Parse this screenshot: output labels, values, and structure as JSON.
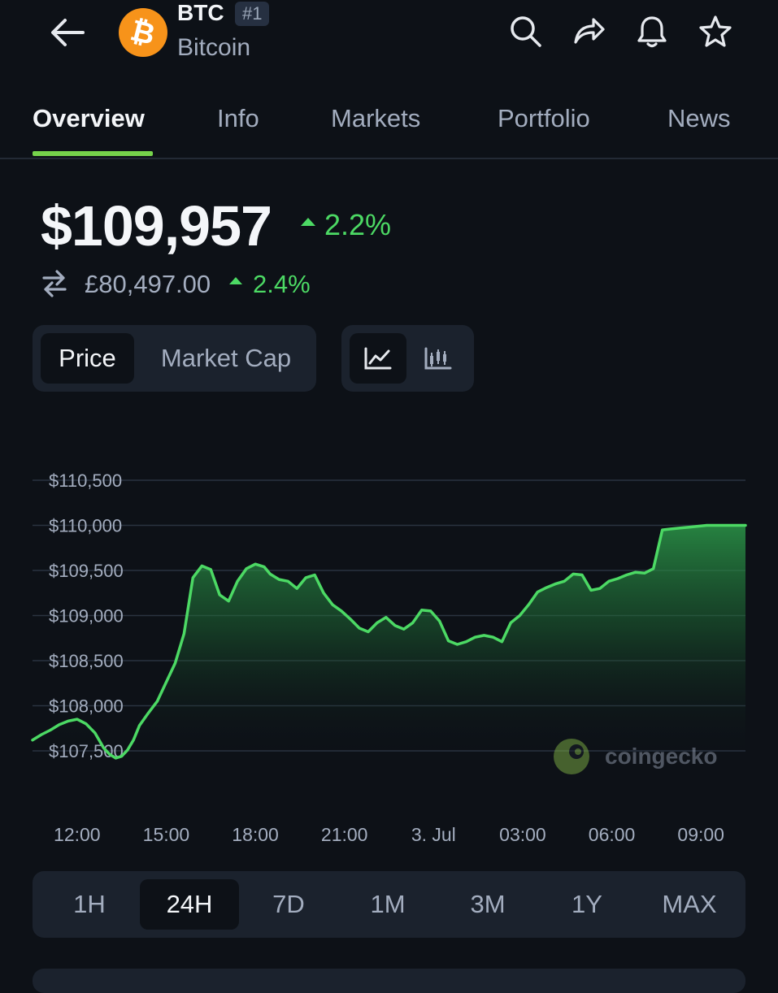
{
  "header": {
    "symbol": "BTC",
    "rank": "#1",
    "name": "Bitcoin",
    "coin_icon": "bitcoin-icon",
    "actions": [
      "search-icon",
      "share-icon",
      "bell-icon",
      "star-icon"
    ]
  },
  "tabs": [
    {
      "label": "Overview",
      "active": true
    },
    {
      "label": "Info"
    },
    {
      "label": "Markets"
    },
    {
      "label": "Portfolio"
    },
    {
      "label": "News"
    }
  ],
  "price": {
    "main": "$109,957",
    "main_change": "2.2%",
    "alt": "£80,497.00",
    "alt_change": "2.4%"
  },
  "chart_toggle": {
    "metric": [
      "Price",
      "Market Cap"
    ],
    "selected_metric": "Price",
    "style_icons": [
      "line-chart-icon",
      "candlestick-icon"
    ]
  },
  "chart_data": {
    "type": "area",
    "y_ticks": [
      "$110,500",
      "$110,000",
      "$109,500",
      "$109,000",
      "$108,500",
      "$108,000",
      "$107,500"
    ],
    "ylim": [
      107500,
      110500
    ],
    "x_ticks": [
      "12:00",
      "15:00",
      "18:00",
      "21:00",
      "3. Jul",
      "03:00",
      "06:00",
      "09:00"
    ],
    "x_tick_hours": [
      0,
      3,
      6,
      9,
      12,
      15,
      18,
      21
    ],
    "xlim": [
      -1.5,
      22.5
    ],
    "watermark": "coingecko",
    "line_color": "#4cd964",
    "x": [
      -1.5,
      -1.2,
      -0.9,
      -0.6,
      -0.3,
      0,
      0.3,
      0.6,
      0.9,
      1.1,
      1.3,
      1.5,
      1.7,
      1.9,
      2.1,
      2.4,
      2.7,
      3.0,
      3.3,
      3.6,
      3.9,
      4.2,
      4.5,
      4.8,
      5.1,
      5.4,
      5.7,
      6.0,
      6.3,
      6.5,
      6.8,
      7.1,
      7.4,
      7.7,
      8.0,
      8.3,
      8.6,
      8.9,
      9.2,
      9.5,
      9.8,
      10.1,
      10.4,
      10.7,
      11.0,
      11.3,
      11.6,
      11.9,
      12.2,
      12.5,
      12.8,
      13.1,
      13.4,
      13.7,
      14.0,
      14.3,
      14.6,
      14.9,
      15.2,
      15.5,
      15.8,
      16.1,
      16.4,
      16.7,
      17.0,
      17.3,
      17.6,
      17.9,
      18.2,
      18.5,
      18.8,
      19.1,
      19.4,
      19.7,
      20.0,
      20.3,
      20.6,
      20.9,
      21.2,
      21.5,
      21.8,
      22.1,
      22.5
    ],
    "values": [
      107620,
      107680,
      107730,
      107790,
      107830,
      107850,
      107800,
      107700,
      107530,
      107460,
      107420,
      107440,
      107510,
      107620,
      107780,
      107920,
      108050,
      108260,
      108470,
      108800,
      109420,
      109550,
      109510,
      109230,
      109160,
      109380,
      109520,
      109570,
      109540,
      109460,
      109400,
      109380,
      109300,
      109420,
      109450,
      109250,
      109120,
      109050,
      108960,
      108860,
      108820,
      108920,
      108980,
      108890,
      108850,
      108920,
      109060,
      109050,
      108940,
      108720,
      108680,
      108710,
      108760,
      108780,
      108760,
      108710,
      108920,
      109000,
      109120,
      109260,
      109310,
      109350,
      109380,
      109460,
      109450,
      109280,
      109300,
      109380,
      109410,
      109450,
      109480,
      109470,
      109520,
      109950,
      109960,
      109970,
      109980,
      109990,
      110000,
      110000,
      110000,
      110000,
      110000
    ],
    "values_note": "approximate"
  },
  "ranges": [
    {
      "label": "1H"
    },
    {
      "label": "24H",
      "active": true
    },
    {
      "label": "7D"
    },
    {
      "label": "1M"
    },
    {
      "label": "3M"
    },
    {
      "label": "1Y"
    },
    {
      "label": "MAX"
    }
  ]
}
